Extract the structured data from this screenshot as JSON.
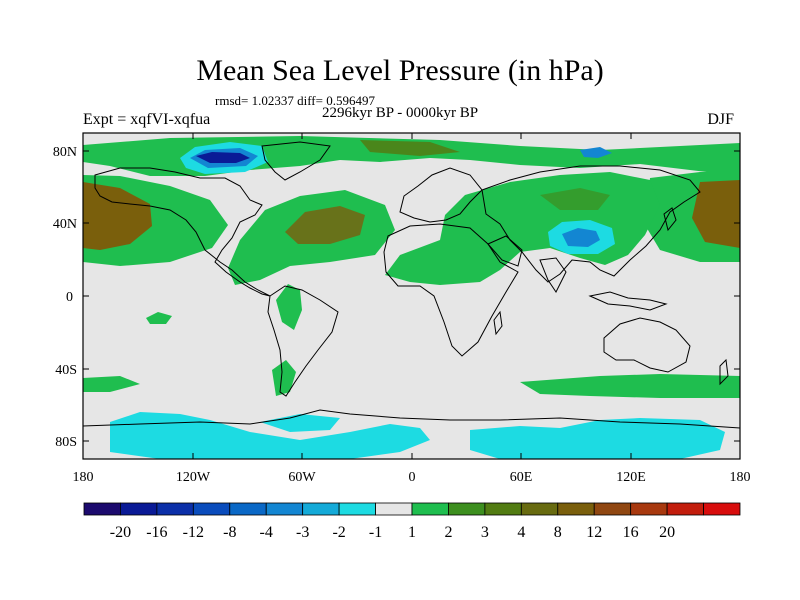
{
  "title": "Mean Sea Level Pressure (in hPa)",
  "stats": "rmsd= 1.02337 diff= 0.596497",
  "experiment": "Expt = xqfVI-xqfua",
  "period": "2296kyr BP - 0000kyr BP",
  "season": "DJF",
  "lat_labels": [
    "80N",
    "40N",
    "0",
    "40S",
    "80S"
  ],
  "lon_labels": [
    "180",
    "120W",
    "60W",
    "0",
    "60E",
    "120E",
    "180"
  ],
  "colorbar": {
    "colors": [
      "#1c0a6e",
      "#0a1a96",
      "#0b2fa8",
      "#0a4cbc",
      "#0a68c6",
      "#1386d2",
      "#14aad8",
      "#1ddbe2",
      "#e6e6e6",
      "#1fbe4f",
      "#3d8f1f",
      "#527c12",
      "#686b10",
      "#7a5f0c",
      "#904711",
      "#a8390f",
      "#c21d0c",
      "#d80d0d"
    ],
    "labels": [
      "-20",
      "-16",
      "-12",
      "-8",
      "-4",
      "-3",
      "-2",
      "-1",
      "1",
      "2",
      "3",
      "4",
      "8",
      "12",
      "16",
      "20"
    ]
  },
  "palette": {
    "background": "#e6e6e6",
    "green": "#1fbe4f",
    "brown": "#7a5f0c",
    "olive": "#3d8f1f",
    "cyan": "#1ddbe2",
    "blue": "#1386d2",
    "navy": "#0a1a96"
  }
}
